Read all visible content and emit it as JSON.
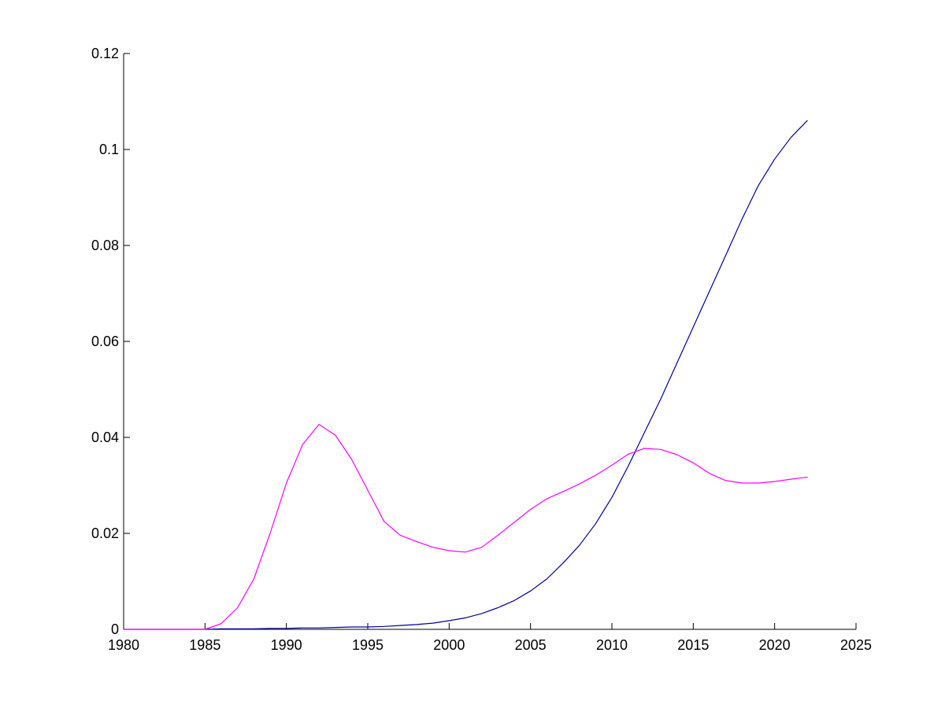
{
  "chart_data": {
    "type": "line",
    "title": "",
    "xlabel": "",
    "ylabel": "",
    "xlim": [
      1980,
      2025
    ],
    "ylim": [
      0,
      0.12
    ],
    "x_ticks": [
      1980,
      1985,
      1990,
      1995,
      2000,
      2005,
      2010,
      2015,
      2020,
      2025
    ],
    "x_tick_labels": [
      "1980",
      "1985",
      "1990",
      "1995",
      "2000",
      "2005",
      "2010",
      "2015",
      "2020",
      "2025"
    ],
    "y_ticks": [
      0,
      0.02,
      0.04,
      0.06,
      0.08,
      0.1,
      0.12
    ],
    "y_tick_labels": [
      "0",
      "0.02",
      "0.04",
      "0.06",
      "0.08",
      "0.1",
      "0.12"
    ],
    "grid": false,
    "legend": "none",
    "series": [
      {
        "color": "#0000a0",
        "x": [
          1980,
          1981,
          1982,
          1983,
          1984,
          1985,
          1986,
          1987,
          1988,
          1989,
          1990,
          1991,
          1992,
          1993,
          1994,
          1995,
          1996,
          1997,
          1998,
          1999,
          2000,
          2001,
          2002,
          2003,
          2004,
          2005,
          2006,
          2007,
          2008,
          2009,
          2010,
          2011,
          2012,
          2013,
          2014,
          2015,
          2016,
          2017,
          2018,
          2019,
          2020,
          2021,
          2022
        ],
        "y": [
          0,
          0,
          0,
          0,
          0,
          0,
          0.0001,
          0.0001,
          0.0001,
          0.0002,
          0.0002,
          0.0003,
          0.0003,
          0.0004,
          0.0005,
          0.0005,
          0.0006,
          0.0008,
          0.001,
          0.0013,
          0.0018,
          0.0024,
          0.0033,
          0.0045,
          0.006,
          0.008,
          0.0105,
          0.0138,
          0.0175,
          0.022,
          0.0275,
          0.034,
          0.041,
          0.048,
          0.0555,
          0.063,
          0.0705,
          0.078,
          0.0855,
          0.0925,
          0.098,
          0.1025,
          0.106
        ]
      },
      {
        "color": "#ff00ff",
        "x": [
          1980,
          1981,
          1982,
          1983,
          1984,
          1985,
          1986,
          1987,
          1988,
          1989,
          1990,
          1991,
          1992,
          1993,
          1994,
          1995,
          1996,
          1997,
          1998,
          1999,
          2000,
          2001,
          2002,
          2003,
          2004,
          2005,
          2006,
          2007,
          2008,
          2009,
          2010,
          2011,
          2012,
          2013,
          2014,
          2015,
          2016,
          2017,
          2018,
          2019,
          2020,
          2021,
          2022
        ],
        "y": [
          0,
          0,
          0,
          0,
          0,
          0,
          0.0012,
          0.0045,
          0.0105,
          0.02,
          0.0305,
          0.0385,
          0.0427,
          0.0405,
          0.0355,
          0.029,
          0.0225,
          0.0196,
          0.0183,
          0.0171,
          0.0164,
          0.0161,
          0.0171,
          0.0196,
          0.0223,
          0.025,
          0.0272,
          0.0287,
          0.0303,
          0.0321,
          0.0342,
          0.0365,
          0.0377,
          0.0375,
          0.0364,
          0.0347,
          0.0325,
          0.031,
          0.0305,
          0.0305,
          0.0308,
          0.0313,
          0.0317
        ]
      }
    ]
  }
}
